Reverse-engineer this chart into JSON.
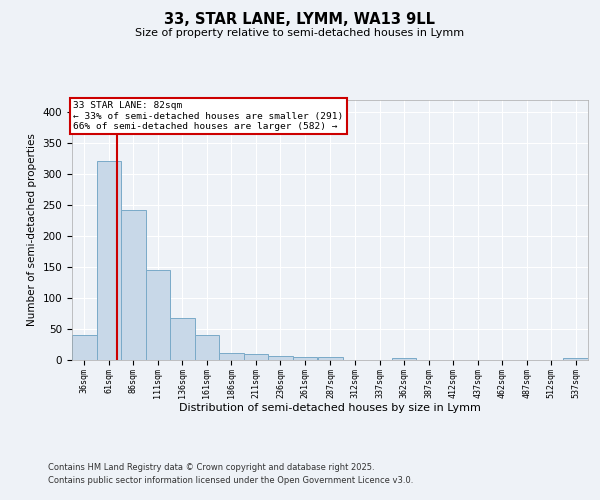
{
  "title1": "33, STAR LANE, LYMM, WA13 9LL",
  "title2": "Size of property relative to semi-detached houses in Lymm",
  "xlabel": "Distribution of semi-detached houses by size in Lymm",
  "ylabel": "Number of semi-detached properties",
  "bin_edges": [
    36,
    61,
    86,
    111,
    136,
    161,
    186,
    211,
    236,
    261,
    287,
    312,
    337,
    362,
    387,
    412,
    437,
    462,
    487,
    512,
    537
  ],
  "bin_width": 25,
  "bar_heights": [
    40,
    322,
    242,
    146,
    68,
    40,
    12,
    10,
    7,
    5,
    5,
    0,
    0,
    3,
    0,
    0,
    0,
    0,
    0,
    0,
    3
  ],
  "bar_color": "#c8d8e8",
  "bar_edge_color": "#7aaac8",
  "property_size": 82,
  "red_line_color": "#cc0000",
  "annotation_line1": "33 STAR LANE: 82sqm",
  "annotation_line2": "← 33% of semi-detached houses are smaller (291)",
  "annotation_line3": "66% of semi-detached houses are larger (582) →",
  "annotation_box_color": "#cc0000",
  "ylim": [
    0,
    420
  ],
  "yticks": [
    0,
    50,
    100,
    150,
    200,
    250,
    300,
    350,
    400
  ],
  "background_color": "#eef2f7",
  "footer1": "Contains HM Land Registry data © Crown copyright and database right 2025.",
  "footer2": "Contains public sector information licensed under the Open Government Licence v3.0.",
  "grid_color": "#ffffff",
  "tick_labels": [
    "36sqm",
    "61sqm",
    "86sqm",
    "111sqm",
    "136sqm",
    "161sqm",
    "186sqm",
    "211sqm",
    "236sqm",
    "261sqm",
    "287sqm",
    "312sqm",
    "337sqm",
    "362sqm",
    "387sqm",
    "412sqm",
    "437sqm",
    "462sqm",
    "487sqm",
    "512sqm",
    "537sqm"
  ]
}
